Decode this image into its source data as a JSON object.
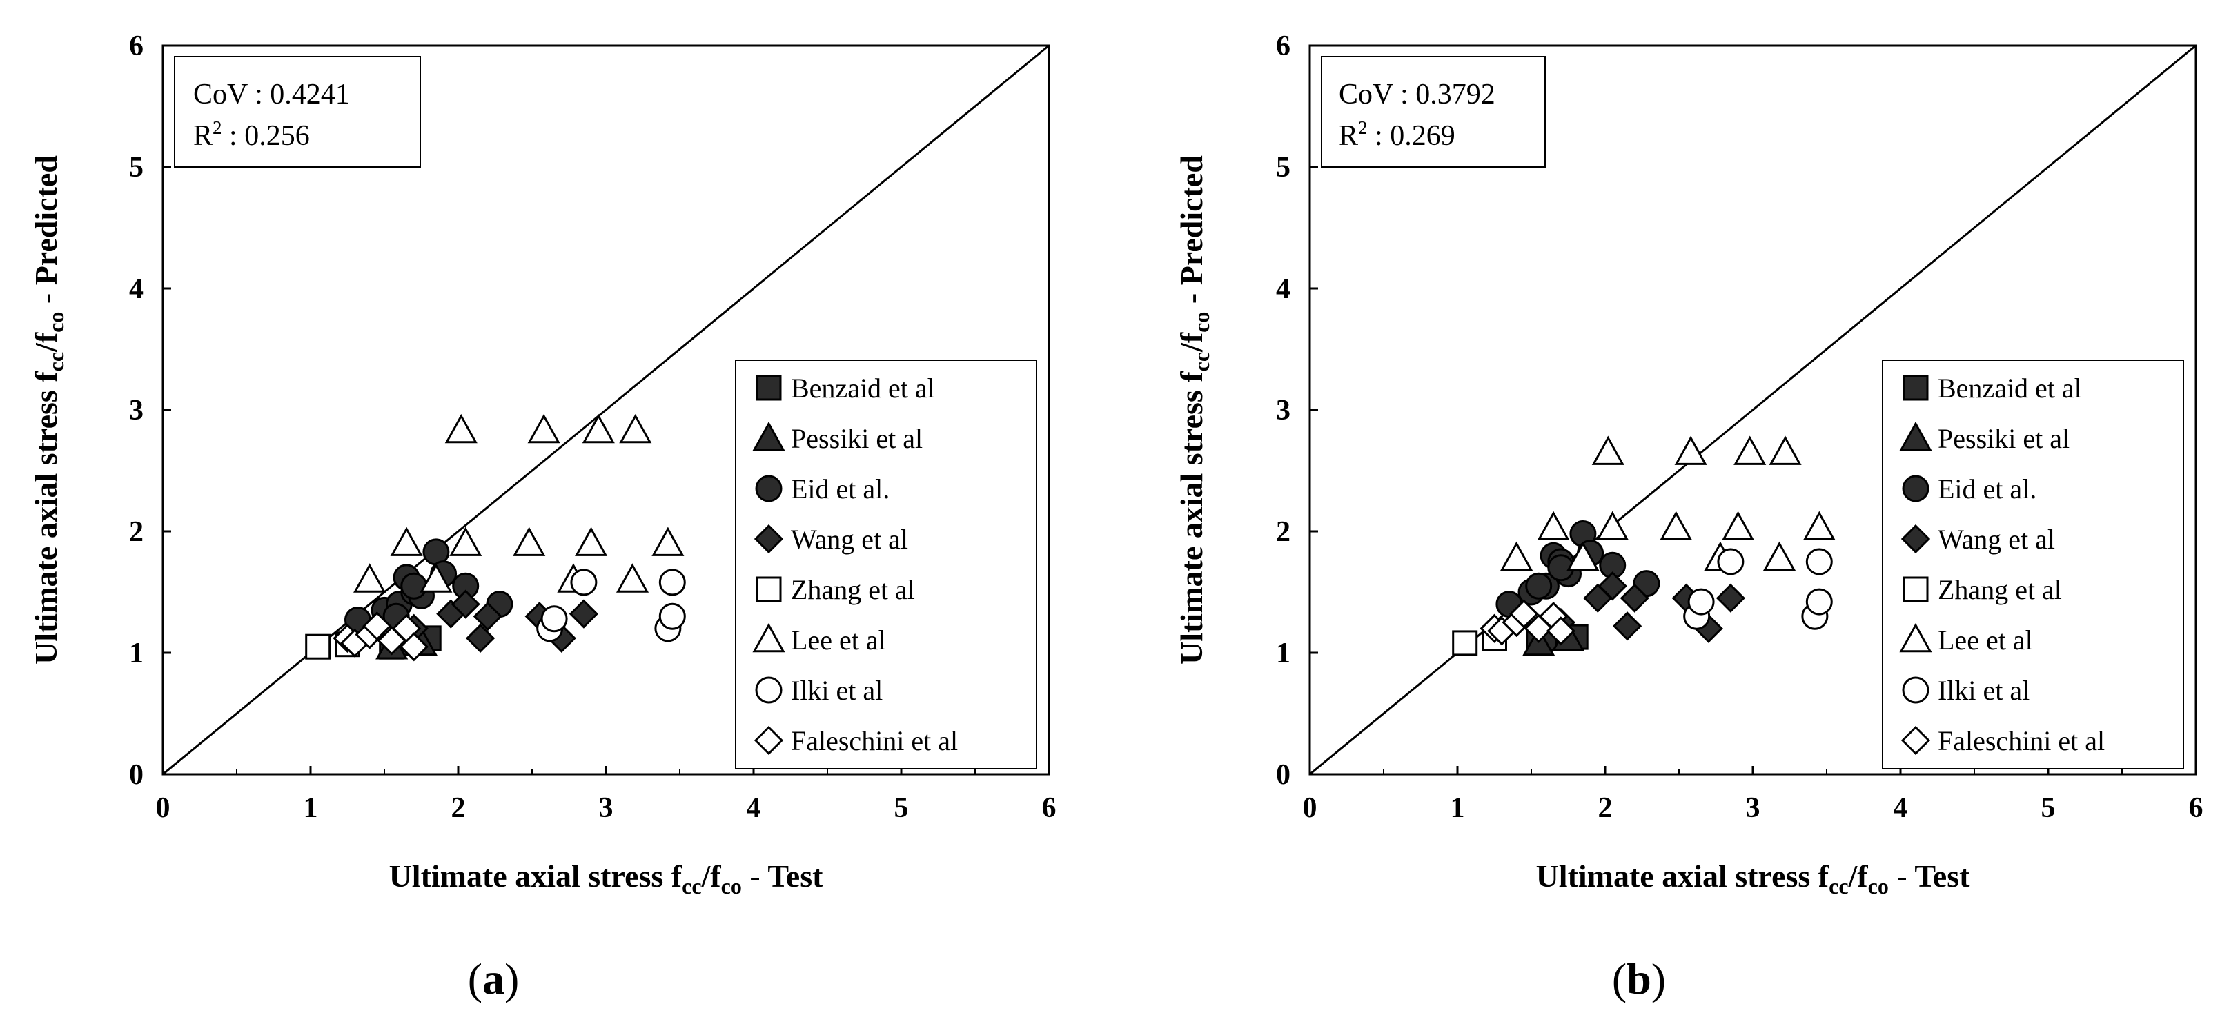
{
  "figure": {
    "series_style": [
      {
        "name": "Benzaid et al",
        "marker": "square",
        "fill": "#2b2b2b"
      },
      {
        "name": "Pessiki et al",
        "marker": "triangle",
        "fill": "#2b2b2b"
      },
      {
        "name": "Eid et al.",
        "marker": "circle",
        "fill": "#2b2b2b"
      },
      {
        "name": "Wang et al",
        "marker": "diamond",
        "fill": "#2b2b2b"
      },
      {
        "name": "Zhang et al",
        "marker": "square",
        "fill": "#ffffff"
      },
      {
        "name": "Lee et al",
        "marker": "triangle",
        "fill": "#ffffff"
      },
      {
        "name": "Ilki et al",
        "marker": "circle",
        "fill": "#ffffff"
      },
      {
        "name": "Faleschini et al",
        "marker": "diamond",
        "fill": "#ffffff"
      }
    ]
  },
  "chart_data": [
    {
      "type": "scatter",
      "panel_label": "a",
      "xlabel": {
        "main": "Ultimate axial stress f",
        "sub1": "cc",
        "mid": "/f",
        "sub2": "co",
        "tail": " - Test"
      },
      "ylabel": {
        "main": "Ultimate axial stress f",
        "sub1": "cc",
        "mid": "/f",
        "sub2": "co",
        "tail": " - Predicted"
      },
      "xlim": [
        0,
        6
      ],
      "ylim": [
        0,
        6
      ],
      "xticks": [
        "0",
        "1",
        "2",
        "3",
        "4",
        "5",
        "6"
      ],
      "yticks": [
        "0",
        "1",
        "2",
        "3",
        "4",
        "5",
        "6"
      ],
      "reference_line": "y = x",
      "stats": {
        "cov_label": "CoV : ",
        "cov": "0.4241",
        "r2_label": "R",
        "r2_sup": "2",
        "r2_sep": " : ",
        "r2": "0.256"
      },
      "legend": [
        "Benzaid et al",
        "Pessiki et al",
        "Eid et al.",
        "Wang et al",
        "Zhang et al",
        "Lee et al",
        "Ilki et al",
        "Faleschini et al"
      ],
      "series": [
        {
          "name": "Benzaid et al",
          "x": [
            1.55,
            1.65,
            1.75,
            1.8
          ],
          "y": [
            1.05,
            1.08,
            1.1,
            1.12
          ]
        },
        {
          "name": "Pessiki et al",
          "x": [
            1.55,
            1.75
          ],
          "y": [
            1.05,
            1.08
          ]
        },
        {
          "name": "Eid et al.",
          "x": [
            1.32,
            1.5,
            1.6,
            1.65,
            1.7,
            1.75,
            1.85,
            1.9,
            2.05,
            2.28,
            1.58,
            1.7
          ],
          "y": [
            1.27,
            1.35,
            1.4,
            1.62,
            1.5,
            1.47,
            1.83,
            1.65,
            1.55,
            1.4,
            1.3,
            1.55
          ]
        },
        {
          "name": "Wang et al",
          "x": [
            1.7,
            1.95,
            2.05,
            2.15,
            2.2,
            2.55,
            2.7,
            2.85
          ],
          "y": [
            1.2,
            1.32,
            1.4,
            1.12,
            1.3,
            1.3,
            1.12,
            1.32
          ]
        },
        {
          "name": "Zhang et al",
          "x": [
            1.05,
            1.25
          ],
          "y": [
            1.05,
            1.07
          ]
        },
        {
          "name": "Lee et al",
          "x": [
            1.4,
            1.65,
            1.85,
            2.02,
            2.05,
            2.48,
            2.58,
            2.78,
            2.9,
            2.95,
            3.18,
            3.2,
            3.42
          ],
          "y": [
            1.6,
            1.9,
            1.6,
            2.83,
            1.9,
            1.9,
            2.83,
            1.6,
            1.9,
            2.83,
            1.6,
            2.83,
            1.9
          ]
        },
        {
          "name": "Ilki et al",
          "x": [
            2.62,
            2.65,
            2.85,
            3.42,
            3.45,
            3.45
          ],
          "y": [
            1.2,
            1.28,
            1.58,
            1.2,
            1.3,
            1.58
          ]
        },
        {
          "name": "Faleschini et al",
          "x": [
            1.25,
            1.3,
            1.4,
            1.45,
            1.55,
            1.65,
            1.7
          ],
          "y": [
            1.12,
            1.08,
            1.15,
            1.22,
            1.1,
            1.2,
            1.05
          ]
        }
      ]
    },
    {
      "type": "scatter",
      "panel_label": "b",
      "xlabel": {
        "main": "Ultimate axial stress f",
        "sub1": "cc",
        "mid": "/f",
        "sub2": "co",
        "tail": " - Test"
      },
      "ylabel": {
        "main": "Ultimate axial stress f",
        "sub1": "cc",
        "mid": "/f",
        "sub2": "co",
        "tail": " - Predicted"
      },
      "xlim": [
        0,
        6
      ],
      "ylim": [
        0,
        6
      ],
      "xticks": [
        "0",
        "1",
        "2",
        "3",
        "4",
        "5",
        "6"
      ],
      "yticks": [
        "0",
        "1",
        "2",
        "3",
        "4",
        "5",
        "6"
      ],
      "reference_line": "y = x",
      "stats": {
        "cov_label": "CoV : ",
        "cov": "0.3792",
        "r2_label": "R",
        "r2_sup": "2",
        "r2_sep": " : ",
        "r2": "0.269"
      },
      "legend": [
        "Benzaid et al",
        "Pessiki et al",
        "Eid et al.",
        "Wang et al",
        "Zhang et al",
        "Lee et al",
        "Ilki et al",
        "Faleschini et al"
      ],
      "series": [
        {
          "name": "Benzaid et al",
          "x": [
            1.55,
            1.65,
            1.75,
            1.8
          ],
          "y": [
            1.1,
            1.12,
            1.12,
            1.13
          ]
        },
        {
          "name": "Pessiki et al",
          "x": [
            1.55,
            1.75
          ],
          "y": [
            1.08,
            1.12
          ]
        },
        {
          "name": "Eid et al.",
          "x": [
            1.35,
            1.5,
            1.6,
            1.65,
            1.7,
            1.75,
            1.85,
            1.9,
            2.05,
            2.28,
            1.55,
            1.7
          ],
          "y": [
            1.4,
            1.5,
            1.55,
            1.8,
            1.75,
            1.65,
            1.98,
            1.82,
            1.72,
            1.57,
            1.55,
            1.7
          ]
        },
        {
          "name": "Wang et al",
          "x": [
            1.7,
            1.95,
            2.05,
            2.15,
            2.2,
            2.55,
            2.7,
            2.85
          ],
          "y": [
            1.25,
            1.45,
            1.55,
            1.22,
            1.45,
            1.45,
            1.2,
            1.45
          ]
        },
        {
          "name": "Zhang et al",
          "x": [
            1.05,
            1.25
          ],
          "y": [
            1.08,
            1.12
          ]
        },
        {
          "name": "Lee et al",
          "x": [
            1.4,
            1.65,
            1.85,
            2.02,
            2.05,
            2.48,
            2.58,
            2.78,
            2.9,
            2.98,
            3.18,
            3.22,
            3.45
          ],
          "y": [
            1.78,
            2.03,
            1.78,
            2.65,
            2.03,
            2.03,
            2.65,
            1.78,
            2.03,
            2.65,
            1.78,
            2.65,
            2.03
          ]
        },
        {
          "name": "Ilki et al",
          "x": [
            2.62,
            2.65,
            2.85,
            3.42,
            3.45,
            3.45
          ],
          "y": [
            1.3,
            1.42,
            1.75,
            1.3,
            1.42,
            1.75
          ]
        },
        {
          "name": "Faleschini et al",
          "x": [
            1.25,
            1.3,
            1.4,
            1.45,
            1.55,
            1.65,
            1.7
          ],
          "y": [
            1.2,
            1.18,
            1.25,
            1.32,
            1.2,
            1.3,
            1.18
          ]
        }
      ]
    }
  ]
}
